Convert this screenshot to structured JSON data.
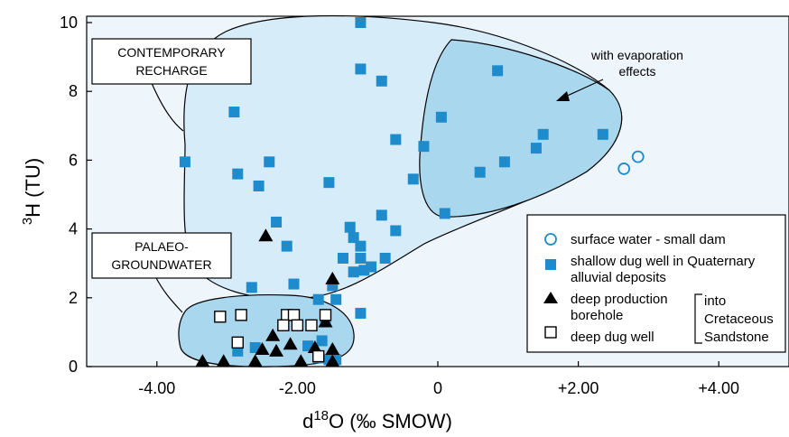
{
  "chart_data": {
    "type": "scatter",
    "xlabel_prefix": "d",
    "xlabel_sup": "18",
    "xlabel_suffix": "O (‰ SMOW)",
    "ylabel_sup": "3",
    "ylabel_suffix": "H (TU)",
    "xlim": [
      -5.0,
      5.0
    ],
    "ylim": [
      0,
      10
    ],
    "x_ticks": [
      {
        "value": -4,
        "label": "-4.00"
      },
      {
        "value": -2,
        "label": "-2.00"
      },
      {
        "value": 0,
        "label": "0"
      },
      {
        "value": 2,
        "label": "+2.00"
      },
      {
        "value": 4,
        "label": "+4.00"
      }
    ],
    "y_ticks": [
      {
        "value": 0,
        "label": "0"
      },
      {
        "value": 2,
        "label": "2"
      },
      {
        "value": 4,
        "label": "4"
      },
      {
        "value": 6,
        "label": "6"
      },
      {
        "value": 8,
        "label": "8"
      },
      {
        "value": 10,
        "label": "10"
      }
    ],
    "callouts": {
      "contemporary": [
        "CONTEMPORARY",
        "RECHARGE"
      ],
      "palaeo": [
        "PALAEO-",
        "GROUNDWATER"
      ],
      "evaporation": [
        "with evaporation",
        "effects"
      ]
    },
    "legend": {
      "surface": "surface water - small dam",
      "shallow_1": "shallow dug well in Quaternary",
      "shallow_2": "alluvial deposits",
      "deep_prod_1": "deep production",
      "deep_prod_2": "borehole",
      "deep_dug": "deep dug well",
      "into_1": "into",
      "into_2": "Cretaceous",
      "into_3": "Sandstone"
    },
    "colors": {
      "background": "#eef6fb",
      "region_recharge": "#d6ecf8",
      "region_evap": "#a9d7ee",
      "region_palaeo": "#a9d7ee",
      "shallow": "#1e8bcd",
      "surface": "#1e8bcd",
      "deep": "#000000"
    },
    "series": [
      {
        "name": "surface water - small dam",
        "marker": "circle-open",
        "points": [
          [
            2.65,
            5.75
          ],
          [
            2.85,
            6.1
          ]
        ]
      },
      {
        "name": "shallow dug well in Quaternary alluvial deposits",
        "marker": "square-filled",
        "points": [
          [
            -1.1,
            10.0
          ],
          [
            -1.1,
            8.65
          ],
          [
            -0.8,
            8.3
          ],
          [
            0.85,
            8.6
          ],
          [
            -2.9,
            7.4
          ],
          [
            0.05,
            7.25
          ],
          [
            -0.6,
            6.6
          ],
          [
            -0.2,
            6.4
          ],
          [
            1.5,
            6.75
          ],
          [
            1.4,
            6.35
          ],
          [
            2.35,
            6.75
          ],
          [
            0.95,
            5.95
          ],
          [
            0.6,
            5.65
          ],
          [
            -3.6,
            5.95
          ],
          [
            -2.85,
            5.6
          ],
          [
            -2.4,
            5.95
          ],
          [
            -2.55,
            5.25
          ],
          [
            -1.55,
            5.35
          ],
          [
            -0.35,
            5.45
          ],
          [
            -2.3,
            4.2
          ],
          [
            -1.25,
            4.05
          ],
          [
            -0.8,
            4.4
          ],
          [
            -0.6,
            3.95
          ],
          [
            0.1,
            4.45
          ],
          [
            -2.15,
            3.5
          ],
          [
            -1.2,
            3.75
          ],
          [
            -1.1,
            3.5
          ],
          [
            -1.35,
            3.15
          ],
          [
            -1.1,
            3.15
          ],
          [
            -0.75,
            3.15
          ],
          [
            -2.65,
            2.3
          ],
          [
            -2.05,
            2.4
          ],
          [
            -1.5,
            2.35
          ],
          [
            -1.2,
            2.75
          ],
          [
            -1.05,
            2.8
          ],
          [
            -0.95,
            2.9
          ],
          [
            -1.7,
            1.95
          ],
          [
            -1.45,
            1.95
          ],
          [
            -1.1,
            1.55
          ],
          [
            -1.6,
            1.4
          ],
          [
            -2.6,
            0.55
          ],
          [
            -2.85,
            0.45
          ],
          [
            -1.85,
            0.6
          ],
          [
            -1.65,
            0.75
          ],
          [
            -1.55,
            0.2
          ],
          [
            -1.45,
            0.2
          ],
          [
            -1.7,
            0.25
          ]
        ]
      },
      {
        "name": "deep production borehole",
        "marker": "triangle-filled",
        "points": [
          [
            -2.45,
            3.8
          ],
          [
            -1.5,
            2.55
          ],
          [
            -1.6,
            1.3
          ],
          [
            -2.35,
            0.9
          ],
          [
            -2.5,
            0.5
          ],
          [
            -2.3,
            0.45
          ],
          [
            -2.1,
            0.65
          ],
          [
            -1.75,
            0.55
          ],
          [
            -1.5,
            0.5
          ],
          [
            -3.35,
            0.15
          ],
          [
            -3.05,
            0.15
          ],
          [
            -2.6,
            0.15
          ],
          [
            -1.95,
            0.15
          ],
          [
            -1.5,
            0.15
          ]
        ]
      },
      {
        "name": "deep dug well",
        "marker": "square-open",
        "points": [
          [
            -3.1,
            1.45
          ],
          [
            -2.8,
            1.5
          ],
          [
            -2.15,
            1.5
          ],
          [
            -2.05,
            1.5
          ],
          [
            -1.6,
            1.5
          ],
          [
            -2.2,
            1.2
          ],
          [
            -2.0,
            1.2
          ],
          [
            -1.8,
            1.2
          ],
          [
            -2.85,
            0.7
          ],
          [
            -1.7,
            0.3
          ]
        ]
      }
    ]
  }
}
